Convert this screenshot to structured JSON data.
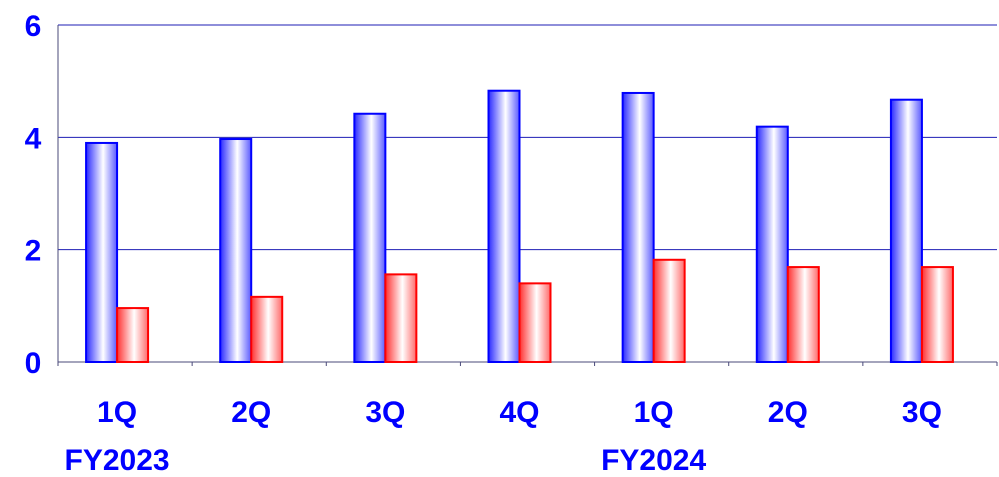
{
  "chart_data": {
    "type": "bar",
    "title": "",
    "xlabel": "",
    "ylabel": "",
    "ylim": [
      0,
      6
    ],
    "yticks": [
      "0",
      "2",
      "4",
      "6"
    ],
    "grid": true,
    "categories": [
      "1Q",
      "2Q",
      "3Q",
      "4Q",
      "1Q",
      "2Q",
      "3Q"
    ],
    "group_labels": [
      {
        "label": "FY2023",
        "category_index": 0
      },
      {
        "label": "FY2024",
        "category_index": 4
      }
    ],
    "series": [
      {
        "values": [
          3.9,
          3.97,
          4.42,
          4.83,
          4.79,
          4.19,
          4.67
        ],
        "color": "#0000ff"
      },
      {
        "values": [
          0.96,
          1.16,
          1.56,
          1.4,
          1.82,
          1.69,
          1.69
        ],
        "color": "#ff0000"
      }
    ]
  }
}
